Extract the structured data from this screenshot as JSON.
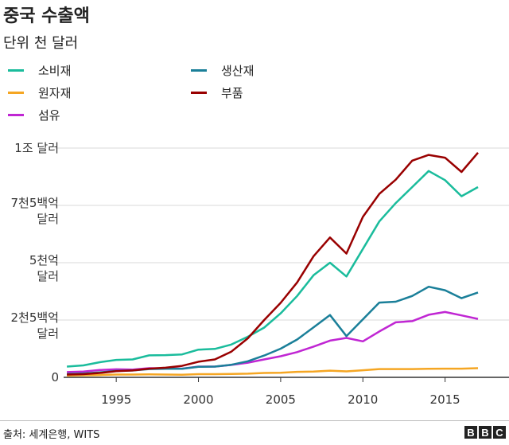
{
  "title": "중국 수출액",
  "subtitle": "단위 천 달러",
  "source": "출처: 세계은행, WITS",
  "logo_letters": [
    "B",
    "B",
    "C"
  ],
  "chart_data": {
    "type": "line",
    "title": "중국 수출액",
    "subtitle": "단위 천 달러",
    "xlim": [
      1991.8,
      2018.5
    ],
    "ylim": [
      0,
      1000000000
    ],
    "x_ticks": [
      1995,
      2000,
      2005,
      2010,
      2015
    ],
    "y_ticks": [
      {
        "value": 0,
        "lines": [
          "0"
        ]
      },
      {
        "value": 250000000,
        "lines": [
          "2천5백억",
          "달러"
        ]
      },
      {
        "value": 500000000,
        "lines": [
          "5천억",
          "달러"
        ]
      },
      {
        "value": 750000000,
        "lines": [
          "7천5백억",
          "달러"
        ]
      },
      {
        "value": 1000000000,
        "lines": [
          "1조 달러"
        ]
      }
    ],
    "grid": true,
    "legend_position": "top-left",
    "x": [
      1992,
      1993,
      1994,
      1995,
      1996,
      1997,
      1998,
      1999,
      2000,
      2001,
      2002,
      2003,
      2004,
      2005,
      2006,
      2007,
      2008,
      2009,
      2010,
      2011,
      2012,
      2013,
      2014,
      2015,
      2016,
      2017
    ],
    "series": [
      {
        "name": "소비재",
        "color": "#1abc9c",
        "values": [
          47000000,
          52000000,
          66000000,
          76000000,
          78000000,
          96000000,
          97000000,
          100000000,
          121000000,
          124000000,
          143000000,
          177000000,
          217000000,
          279000000,
          355000000,
          445000000,
          500000000,
          440000000,
          560000000,
          680000000,
          760000000,
          830000000,
          900000000,
          860000000,
          790000000,
          830000000
        ]
      },
      {
        "name": "원자재",
        "color": "#f5a623",
        "values": [
          8000000,
          9000000,
          10000000,
          12000000,
          12000000,
          13000000,
          12000000,
          11000000,
          14000000,
          14000000,
          15000000,
          16000000,
          19000000,
          20000000,
          24000000,
          25000000,
          29000000,
          26000000,
          31000000,
          36000000,
          36000000,
          36000000,
          37000000,
          38000000,
          38000000,
          40000000
        ]
      },
      {
        "name": "섬유",
        "color": "#c026d3",
        "values": [
          23000000,
          25000000,
          32000000,
          35000000,
          34000000,
          40000000,
          39000000,
          38000000,
          47000000,
          47000000,
          54000000,
          64000000,
          78000000,
          92000000,
          110000000,
          134000000,
          160000000,
          172000000,
          157000000,
          200000000,
          240000000,
          245000000,
          273000000,
          285000000,
          270000000,
          255000000
        ]
      },
      {
        "name": "생산재",
        "color": "#1a7f99",
        "values": [
          15000000,
          17000000,
          22000000,
          28000000,
          30000000,
          36000000,
          37000000,
          37000000,
          46000000,
          47000000,
          55000000,
          70000000,
          95000000,
          125000000,
          165000000,
          218000000,
          272000000,
          180000000,
          253000000,
          326000000,
          330000000,
          355000000,
          395000000,
          380000000,
          345000000,
          370000000
        ]
      },
      {
        "name": "부품",
        "color": "#990000",
        "values": [
          12000000,
          14000000,
          19000000,
          27000000,
          30000000,
          38000000,
          42000000,
          50000000,
          68000000,
          78000000,
          112000000,
          170000000,
          250000000,
          325000000,
          414000000,
          528000000,
          610000000,
          540000000,
          700000000,
          800000000,
          862000000,
          945000000,
          970000000,
          958000000,
          896000000,
          980000000
        ]
      }
    ]
  }
}
